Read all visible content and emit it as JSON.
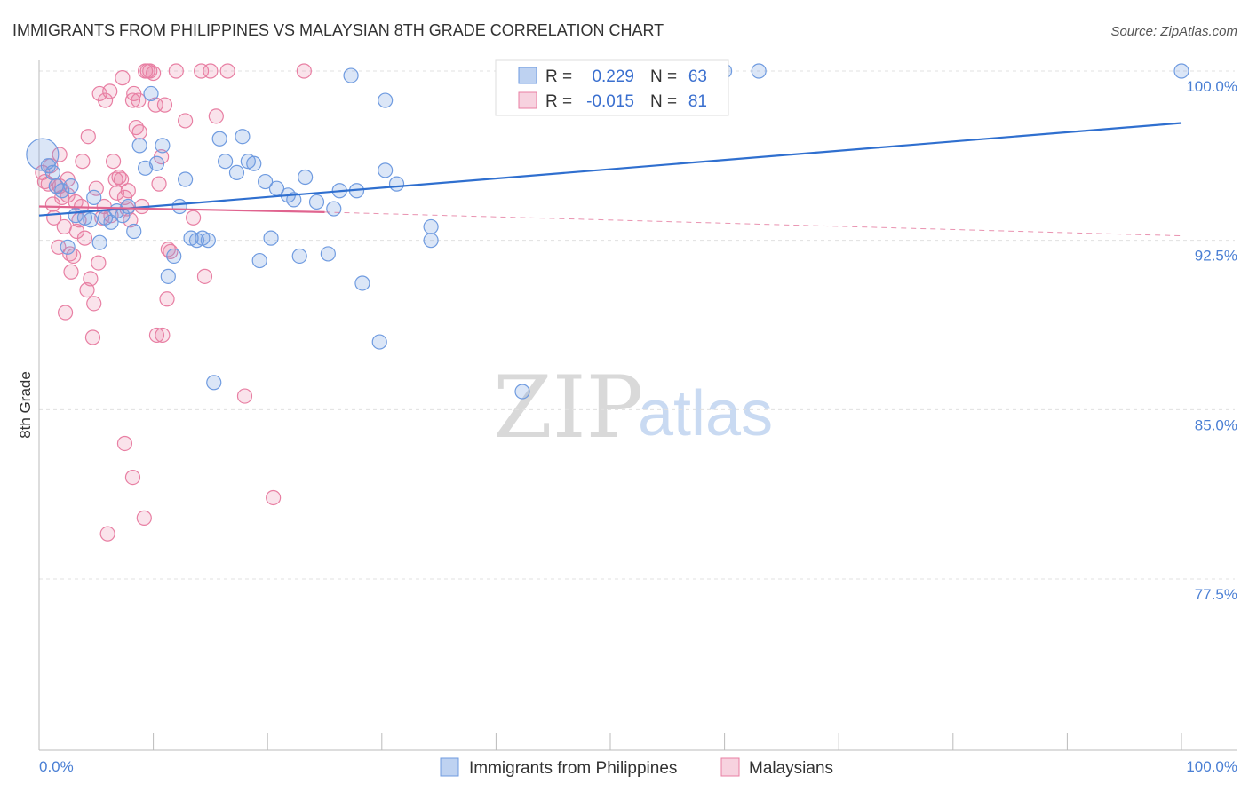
{
  "title": "IMMIGRANTS FROM PHILIPPINES VS MALAYSIAN 8TH GRADE CORRELATION CHART",
  "source": "Source: ZipAtlas.com",
  "watermark": {
    "zip": "ZIP",
    "atlas": "atlas"
  },
  "colors": {
    "blue": "#6f9be0",
    "blue_fill": "rgba(111,155,224,0.25)",
    "blue_line": "#2f6fcf",
    "pink": "#e87fa3",
    "pink_fill": "rgba(232,127,163,0.22)",
    "pink_line": "#e0648f",
    "grid": "#e0e0e0",
    "tick_text": "#4a7fd4"
  },
  "legend": {
    "r_label": "R =",
    "n_label": "N =",
    "series": [
      {
        "r": "0.229",
        "n": "63"
      },
      {
        "r": "-0.015",
        "n": "81"
      }
    ]
  },
  "chart_data": {
    "type": "scatter",
    "title": "IMMIGRANTS FROM PHILIPPINES VS MALAYSIAN 8TH GRADE CORRELATION CHART",
    "xlabel": "",
    "ylabel": "8th Grade",
    "xlim": [
      0,
      100
    ],
    "ylim": [
      70.0,
      101.5
    ],
    "x_tick_labels": [
      "0.0%",
      "100.0%"
    ],
    "y_ticks": [
      77.5,
      85.0,
      92.5,
      100.0
    ],
    "y_tick_labels": [
      "77.5%",
      "85.0%",
      "92.5%",
      "100.0%"
    ],
    "series": [
      {
        "name": "Immigrants from Philippines",
        "trend": {
          "x0": 0,
          "y0": 93.6,
          "x1": 100,
          "y1": 97.7
        },
        "points": [
          {
            "x": 0.3,
            "y": 96.3,
            "big": true
          },
          {
            "x": 0.8,
            "y": 95.8
          },
          {
            "x": 1.2,
            "y": 95.5
          },
          {
            "x": 1.5,
            "y": 94.9
          },
          {
            "x": 2.0,
            "y": 94.7
          },
          {
            "x": 2.5,
            "y": 92.2
          },
          {
            "x": 2.8,
            "y": 94.9
          },
          {
            "x": 3.2,
            "y": 93.6
          },
          {
            "x": 4.0,
            "y": 93.5
          },
          {
            "x": 4.5,
            "y": 93.4
          },
          {
            "x": 4.8,
            "y": 94.4
          },
          {
            "x": 5.3,
            "y": 92.4
          },
          {
            "x": 5.8,
            "y": 93.5
          },
          {
            "x": 6.3,
            "y": 93.3
          },
          {
            "x": 6.8,
            "y": 93.8
          },
          {
            "x": 7.3,
            "y": 93.6
          },
          {
            "x": 7.8,
            "y": 94.0
          },
          {
            "x": 8.3,
            "y": 92.9
          },
          {
            "x": 8.8,
            "y": 96.7
          },
          {
            "x": 9.3,
            "y": 95.7
          },
          {
            "x": 9.8,
            "y": 99.0
          },
          {
            "x": 10.3,
            "y": 95.9
          },
          {
            "x": 10.8,
            "y": 96.7
          },
          {
            "x": 11.3,
            "y": 90.9
          },
          {
            "x": 11.8,
            "y": 91.8
          },
          {
            "x": 12.3,
            "y": 94.0
          },
          {
            "x": 12.8,
            "y": 95.2
          },
          {
            "x": 13.3,
            "y": 92.6
          },
          {
            "x": 13.8,
            "y": 92.5
          },
          {
            "x": 14.3,
            "y": 92.6
          },
          {
            "x": 14.8,
            "y": 92.5
          },
          {
            "x": 15.3,
            "y": 86.2
          },
          {
            "x": 15.8,
            "y": 97.0
          },
          {
            "x": 16.3,
            "y": 96.0
          },
          {
            "x": 17.3,
            "y": 95.5
          },
          {
            "x": 17.8,
            "y": 97.1
          },
          {
            "x": 18.3,
            "y": 96.0
          },
          {
            "x": 18.8,
            "y": 95.9
          },
          {
            "x": 19.3,
            "y": 91.6
          },
          {
            "x": 19.8,
            "y": 95.1
          },
          {
            "x": 20.3,
            "y": 92.6
          },
          {
            "x": 20.8,
            "y": 94.8
          },
          {
            "x": 21.8,
            "y": 94.5
          },
          {
            "x": 22.3,
            "y": 94.3
          },
          {
            "x": 22.8,
            "y": 91.8
          },
          {
            "x": 23.3,
            "y": 95.3
          },
          {
            "x": 24.3,
            "y": 94.2
          },
          {
            "x": 25.3,
            "y": 91.9
          },
          {
            "x": 25.8,
            "y": 93.9
          },
          {
            "x": 26.3,
            "y": 94.7
          },
          {
            "x": 27.3,
            "y": 99.8
          },
          {
            "x": 27.8,
            "y": 94.7
          },
          {
            "x": 28.3,
            "y": 90.6
          },
          {
            "x": 29.8,
            "y": 88.0
          },
          {
            "x": 30.3,
            "y": 98.7
          },
          {
            "x": 30.3,
            "y": 95.6
          },
          {
            "x": 31.3,
            "y": 95.0
          },
          {
            "x": 34.3,
            "y": 93.1
          },
          {
            "x": 34.3,
            "y": 92.5
          },
          {
            "x": 42.3,
            "y": 85.8
          },
          {
            "x": 60.0,
            "y": 100.0
          },
          {
            "x": 63.0,
            "y": 100.0
          },
          {
            "x": 100.0,
            "y": 100.0
          }
        ]
      },
      {
        "name": "Malaysians",
        "trend": {
          "x0": 0,
          "y0": 94.0,
          "x1": 25,
          "y1": 93.75
        },
        "trend_dashed": {
          "x0": 25,
          "y0": 93.75,
          "x1": 100,
          "y1": 92.7
        },
        "points": [
          {
            "x": 0.3,
            "y": 95.5
          },
          {
            "x": 0.5,
            "y": 95.1
          },
          {
            "x": 0.8,
            "y": 95.0
          },
          {
            "x": 1.0,
            "y": 95.8
          },
          {
            "x": 1.2,
            "y": 94.1
          },
          {
            "x": 1.3,
            "y": 93.5
          },
          {
            "x": 1.5,
            "y": 94.9
          },
          {
            "x": 1.7,
            "y": 92.2
          },
          {
            "x": 1.8,
            "y": 96.3
          },
          {
            "x": 2.0,
            "y": 94.4
          },
          {
            "x": 2.2,
            "y": 93.1
          },
          {
            "x": 2.3,
            "y": 89.3
          },
          {
            "x": 2.5,
            "y": 94.5
          },
          {
            "x": 2.7,
            "y": 91.9
          },
          {
            "x": 2.8,
            "y": 91.1
          },
          {
            "x": 3.0,
            "y": 91.8
          },
          {
            "x": 3.2,
            "y": 94.2
          },
          {
            "x": 3.3,
            "y": 92.9
          },
          {
            "x": 3.5,
            "y": 93.4
          },
          {
            "x": 3.7,
            "y": 94.0
          },
          {
            "x": 3.8,
            "y": 96.0
          },
          {
            "x": 4.0,
            "y": 92.6
          },
          {
            "x": 4.2,
            "y": 90.3
          },
          {
            "x": 4.3,
            "y": 97.1
          },
          {
            "x": 4.5,
            "y": 90.8
          },
          {
            "x": 4.7,
            "y": 88.2
          },
          {
            "x": 4.8,
            "y": 89.7
          },
          {
            "x": 5.0,
            "y": 94.8
          },
          {
            "x": 5.2,
            "y": 91.5
          },
          {
            "x": 5.3,
            "y": 99.0
          },
          {
            "x": 5.5,
            "y": 93.5
          },
          {
            "x": 5.7,
            "y": 94.0
          },
          {
            "x": 5.8,
            "y": 98.7
          },
          {
            "x": 6.0,
            "y": 79.5
          },
          {
            "x": 6.2,
            "y": 99.1
          },
          {
            "x": 6.3,
            "y": 93.6
          },
          {
            "x": 6.5,
            "y": 96.0
          },
          {
            "x": 6.7,
            "y": 95.2
          },
          {
            "x": 6.8,
            "y": 94.6
          },
          {
            "x": 7.0,
            "y": 95.3
          },
          {
            "x": 7.2,
            "y": 95.2
          },
          {
            "x": 7.3,
            "y": 99.7
          },
          {
            "x": 7.5,
            "y": 94.4
          },
          {
            "x": 7.7,
            "y": 93.9
          },
          {
            "x": 7.8,
            "y": 94.7
          },
          {
            "x": 8.0,
            "y": 93.4
          },
          {
            "x": 8.2,
            "y": 98.7
          },
          {
            "x": 8.3,
            "y": 99.0
          },
          {
            "x": 8.5,
            "y": 97.5
          },
          {
            "x": 8.7,
            "y": 98.7
          },
          {
            "x": 8.8,
            "y": 97.3
          },
          {
            "x": 9.0,
            "y": 94.0
          },
          {
            "x": 9.2,
            "y": 80.2
          },
          {
            "x": 9.3,
            "y": 100.0
          },
          {
            "x": 9.5,
            "y": 100.0
          },
          {
            "x": 9.7,
            "y": 100.0
          },
          {
            "x": 10.0,
            "y": 99.9
          },
          {
            "x": 10.2,
            "y": 98.5
          },
          {
            "x": 10.3,
            "y": 88.3
          },
          {
            "x": 10.5,
            "y": 95.0
          },
          {
            "x": 10.7,
            "y": 96.2
          },
          {
            "x": 10.8,
            "y": 88.3
          },
          {
            "x": 11.0,
            "y": 98.5
          },
          {
            "x": 11.2,
            "y": 89.9
          },
          {
            "x": 11.3,
            "y": 92.1
          },
          {
            "x": 11.5,
            "y": 92.0
          },
          {
            "x": 12.0,
            "y": 100.0
          },
          {
            "x": 12.8,
            "y": 97.8
          },
          {
            "x": 13.5,
            "y": 93.5
          },
          {
            "x": 14.2,
            "y": 100.0
          },
          {
            "x": 14.5,
            "y": 90.9
          },
          {
            "x": 15.0,
            "y": 100.0
          },
          {
            "x": 15.5,
            "y": 98.0
          },
          {
            "x": 16.5,
            "y": 100.0
          },
          {
            "x": 18.0,
            "y": 85.6
          },
          {
            "x": 20.5,
            "y": 81.1
          },
          {
            "x": 23.2,
            "y": 100.0
          },
          {
            "x": 7.5,
            "y": 83.5
          },
          {
            "x": 8.2,
            "y": 82.0
          },
          {
            "x": 1.8,
            "y": 94.9
          },
          {
            "x": 2.5,
            "y": 95.2
          }
        ]
      }
    ]
  },
  "bottom_legend": [
    {
      "label": "Immigrants from Philippines"
    },
    {
      "label": "Malaysians"
    }
  ]
}
